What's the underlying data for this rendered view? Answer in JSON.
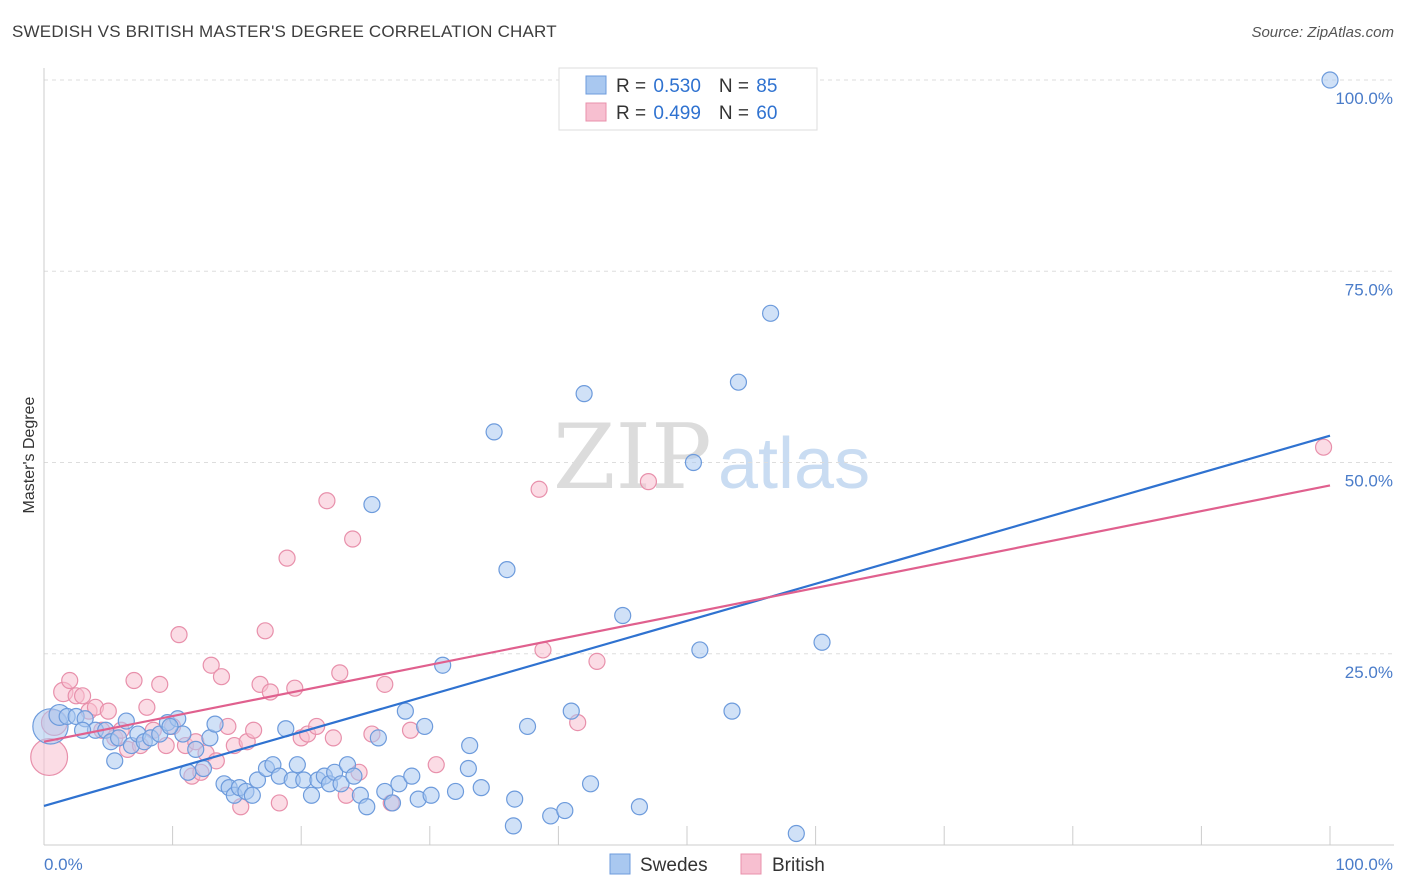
{
  "title": "SWEDISH VS BRITISH MASTER'S DEGREE CORRELATION CHART",
  "source": "Source: ZipAtlas.com",
  "watermark": {
    "zip": "ZIP",
    "atlas": "atlas"
  },
  "colors": {
    "swedes_fill": "#a9c8f0",
    "swedes_stroke": "#6d9bdc",
    "swedes_line": "#2f72d0",
    "british_fill": "#f7bfd0",
    "british_stroke": "#e890ab",
    "british_line": "#e0608e",
    "tick_text": "#4a7cc9",
    "grid": "#dddddd"
  },
  "legend": {
    "rows": [
      {
        "r_label": "R = ",
        "r_value": "0.530",
        "n_label": "N = ",
        "n_value": "85"
      },
      {
        "r_label": "R = ",
        "r_value": "0.499",
        "n_label": "N = ",
        "n_value": "60"
      }
    ]
  },
  "chart_data": {
    "type": "scatter",
    "title": "SWEDISH VS BRITISH MASTER'S DEGREE CORRELATION CHART",
    "xlabel": "",
    "ylabel": "Master's Degree",
    "xlim": [
      0,
      100
    ],
    "ylim": [
      0,
      100
    ],
    "x_tick_labels": [
      "0.0%",
      "100.0%"
    ],
    "y_ticks": [
      25,
      50,
      75,
      100
    ],
    "y_tick_labels": [
      "25.0%",
      "50.0%",
      "75.0%",
      "100.0%"
    ],
    "grid": true,
    "legend_position": "top-center",
    "series": [
      {
        "name": "Swedes",
        "trend": {
          "x": [
            0,
            100
          ],
          "y": [
            5.1,
            53.5
          ]
        },
        "points": [
          [
            0.5,
            15.5,
            2.2
          ],
          [
            1.2,
            17,
            1.3
          ],
          [
            1.8,
            16.8,
            1
          ],
          [
            2.5,
            16.8,
            1
          ],
          [
            3.2,
            16.5,
            1
          ],
          [
            4.0,
            15.0,
            1
          ],
          [
            4.8,
            15.0,
            1
          ],
          [
            5.2,
            13.5,
            1
          ],
          [
            5.8,
            14.0,
            1
          ],
          [
            5.5,
            11.0,
            1
          ],
          [
            6.4,
            16.2,
            1
          ],
          [
            6.8,
            13.0,
            1
          ],
          [
            7.3,
            14.5,
            1
          ],
          [
            7.8,
            13.5,
            1
          ],
          [
            8.3,
            14.0,
            1
          ],
          [
            9.0,
            14.5,
            1
          ],
          [
            9.6,
            16.0,
            1
          ],
          [
            10.4,
            16.5,
            1
          ],
          [
            10.8,
            14.5,
            1
          ],
          [
            11.2,
            9.5,
            1
          ],
          [
            11.8,
            12.5,
            1
          ],
          [
            12.4,
            10.0,
            1
          ],
          [
            12.9,
            14.0,
            1
          ],
          [
            13.3,
            15.8,
            1
          ],
          [
            14.0,
            8.0,
            1
          ],
          [
            14.4,
            7.5,
            1
          ],
          [
            14.8,
            6.5,
            1
          ],
          [
            15.2,
            7.5,
            1
          ],
          [
            15.7,
            7.0,
            1
          ],
          [
            16.2,
            6.5,
            1
          ],
          [
            16.6,
            8.5,
            1
          ],
          [
            17.3,
            10.0,
            1
          ],
          [
            17.8,
            10.5,
            1
          ],
          [
            18.3,
            9.0,
            1
          ],
          [
            18.8,
            15.2,
            1
          ],
          [
            19.3,
            8.5,
            1
          ],
          [
            19.7,
            10.5,
            1
          ],
          [
            20.2,
            8.5,
            1
          ],
          [
            20.8,
            6.5,
            1
          ],
          [
            21.3,
            8.5,
            1
          ],
          [
            21.8,
            9.0,
            1
          ],
          [
            22.2,
            8.0,
            1
          ],
          [
            22.6,
            9.5,
            1
          ],
          [
            23.1,
            8.0,
            1
          ],
          [
            23.6,
            10.5,
            1
          ],
          [
            24.1,
            9.0,
            1
          ],
          [
            24.6,
            6.5,
            1
          ],
          [
            25.1,
            5.0,
            1
          ],
          [
            25.5,
            44.5,
            1
          ],
          [
            26.0,
            14.0,
            1
          ],
          [
            26.5,
            7.0,
            1
          ],
          [
            27.1,
            5.5,
            1
          ],
          [
            27.6,
            8.0,
            1
          ],
          [
            28.1,
            17.5,
            1
          ],
          [
            28.6,
            9.0,
            1
          ],
          [
            29.1,
            6.0,
            1
          ],
          [
            29.6,
            15.5,
            1
          ],
          [
            30.1,
            6.5,
            1
          ],
          [
            31.0,
            23.5,
            1
          ],
          [
            32.0,
            7.0,
            1
          ],
          [
            33.0,
            10.0,
            1
          ],
          [
            33.1,
            13.0,
            1
          ],
          [
            34.0,
            7.5,
            1
          ],
          [
            35.0,
            54.0,
            1
          ],
          [
            36.0,
            36.0,
            1
          ],
          [
            36.5,
            2.5,
            1
          ],
          [
            36.6,
            6.0,
            1
          ],
          [
            37.6,
            15.5,
            1
          ],
          [
            39.4,
            3.8,
            1
          ],
          [
            40.5,
            4.5,
            1
          ],
          [
            41.0,
            17.5,
            1
          ],
          [
            42.0,
            59.0,
            1
          ],
          [
            42.5,
            8.0,
            1
          ],
          [
            45.0,
            30.0,
            1
          ],
          [
            46.3,
            5.0,
            1
          ],
          [
            50.5,
            50.0,
            1
          ],
          [
            51.0,
            25.5,
            1
          ],
          [
            53.5,
            17.5,
            1
          ],
          [
            54.0,
            60.5,
            1
          ],
          [
            56.5,
            69.5,
            1
          ],
          [
            58.5,
            1.5,
            1
          ],
          [
            60.5,
            26.5,
            1
          ],
          [
            100.0,
            100.0,
            1
          ],
          [
            3.0,
            15.0,
            1
          ],
          [
            9.8,
            15.5,
            1
          ]
        ]
      },
      {
        "name": "British",
        "trend": {
          "x": [
            0,
            100
          ],
          "y": [
            13.5,
            47.0
          ]
        },
        "points": [
          [
            0.4,
            11.5,
            2.3
          ],
          [
            0.8,
            16.0,
            1.6
          ],
          [
            1.5,
            20.0,
            1.2
          ],
          [
            2.0,
            21.5,
            1
          ],
          [
            2.5,
            19.5,
            1
          ],
          [
            3.0,
            19.5,
            1
          ],
          [
            3.5,
            17.5,
            1
          ],
          [
            4.0,
            18.0,
            1
          ],
          [
            4.5,
            15.0,
            1
          ],
          [
            5.0,
            17.5,
            1
          ],
          [
            5.5,
            14.0,
            1
          ],
          [
            6.0,
            15.0,
            1
          ],
          [
            6.5,
            12.5,
            1
          ],
          [
            7.0,
            21.5,
            1
          ],
          [
            7.5,
            13.0,
            1
          ],
          [
            8.0,
            18.0,
            1
          ],
          [
            8.5,
            15.0,
            1
          ],
          [
            9.0,
            21.0,
            1
          ],
          [
            9.5,
            13.0,
            1
          ],
          [
            10.0,
            15.5,
            1
          ],
          [
            10.5,
            27.5,
            1
          ],
          [
            11.0,
            13.0,
            1
          ],
          [
            11.5,
            9.0,
            1
          ],
          [
            11.8,
            13.5,
            1
          ],
          [
            12.2,
            9.5,
            1
          ],
          [
            12.6,
            12.0,
            1
          ],
          [
            13.0,
            23.5,
            1
          ],
          [
            13.4,
            11.0,
            1
          ],
          [
            13.8,
            22.0,
            1
          ],
          [
            14.3,
            15.5,
            1
          ],
          [
            14.8,
            13.0,
            1
          ],
          [
            15.3,
            5.0,
            1
          ],
          [
            15.8,
            13.5,
            1
          ],
          [
            16.3,
            15.0,
            1
          ],
          [
            16.8,
            21.0,
            1
          ],
          [
            17.2,
            28.0,
            1
          ],
          [
            17.6,
            20.0,
            1
          ],
          [
            18.3,
            5.5,
            1
          ],
          [
            18.9,
            37.5,
            1
          ],
          [
            19.5,
            20.5,
            1
          ],
          [
            20.0,
            14.0,
            1
          ],
          [
            20.5,
            14.5,
            1
          ],
          [
            21.2,
            15.5,
            1
          ],
          [
            22.0,
            45.0,
            1
          ],
          [
            22.5,
            14.0,
            1
          ],
          [
            23.0,
            22.5,
            1
          ],
          [
            23.5,
            6.5,
            1
          ],
          [
            24.0,
            40.0,
            1
          ],
          [
            24.5,
            9.5,
            1
          ],
          [
            25.5,
            14.5,
            1
          ],
          [
            26.5,
            21.0,
            1
          ],
          [
            27.0,
            5.5,
            1
          ],
          [
            28.5,
            15.0,
            1
          ],
          [
            30.5,
            10.5,
            1
          ],
          [
            38.5,
            46.5,
            1
          ],
          [
            38.8,
            25.5,
            1
          ],
          [
            43.0,
            24.0,
            1
          ],
          [
            41.5,
            16.0,
            1
          ],
          [
            47.0,
            47.5,
            1
          ],
          [
            99.5,
            52.0,
            1
          ]
        ]
      }
    ]
  },
  "bottom_legend": {
    "items": [
      {
        "label": "Swedes"
      },
      {
        "label": "British"
      }
    ]
  }
}
